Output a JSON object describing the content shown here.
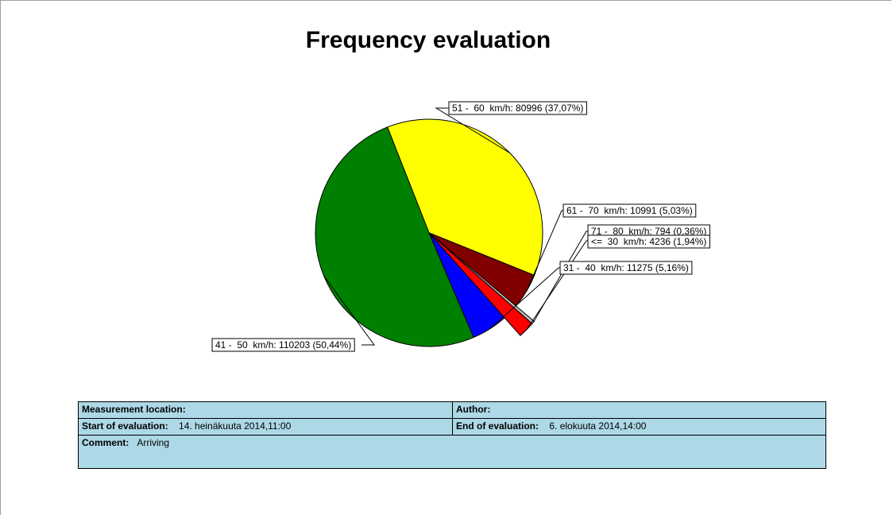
{
  "page": {
    "title": "Frequency evaluation"
  },
  "chart_data": {
    "type": "pie",
    "title": "Frequency evaluation",
    "slices": [
      {
        "label": "51 -  60  km/h: 80996 (37,07%)",
        "category": "51 - 60 km/h",
        "value": 80996,
        "percent": 37.07,
        "color": "#ffff00",
        "exploded": false
      },
      {
        "label": "61 -  70  km/h: 10991 (5,03%)",
        "category": "61 - 70 km/h",
        "value": 10991,
        "percent": 5.03,
        "color": "#800000",
        "exploded": false
      },
      {
        "label": "71 -  80  km/h: 794 (0,36%)",
        "category": "71 - 80 km/h",
        "value": 794,
        "percent": 0.36,
        "color": "#c0c0c0",
        "exploded": true
      },
      {
        "label": "<=  30  km/h: 4236 (1,94%)",
        "category": "<= 30 km/h",
        "value": 4236,
        "percent": 1.94,
        "color": "#ff0000",
        "exploded": true
      },
      {
        "label": "31 -  40  km/h: 11275 (5,16%)",
        "category": "31 - 40 km/h",
        "value": 11275,
        "percent": 5.16,
        "color": "#0000ff",
        "exploded": false
      },
      {
        "label": "41 -  50  km/h: 110203 (50,44%)",
        "category": "41 - 50 km/h",
        "value": 110203,
        "percent": 50.44,
        "color": "#008000",
        "exploded": false
      }
    ]
  },
  "info": {
    "location_label": "Measurement location:",
    "location_value": "",
    "author_label": "Author:",
    "author_value": "",
    "start_label": "Start of evaluation:",
    "start_date": "14. heinäkuuta 2014",
    "start_time": "11:00",
    "end_label": "End of evaluation:",
    "end_date": "6. elokuuta 2014",
    "end_time": "14:00",
    "comment_label": "Comment:",
    "comment_value": "Arriving"
  }
}
